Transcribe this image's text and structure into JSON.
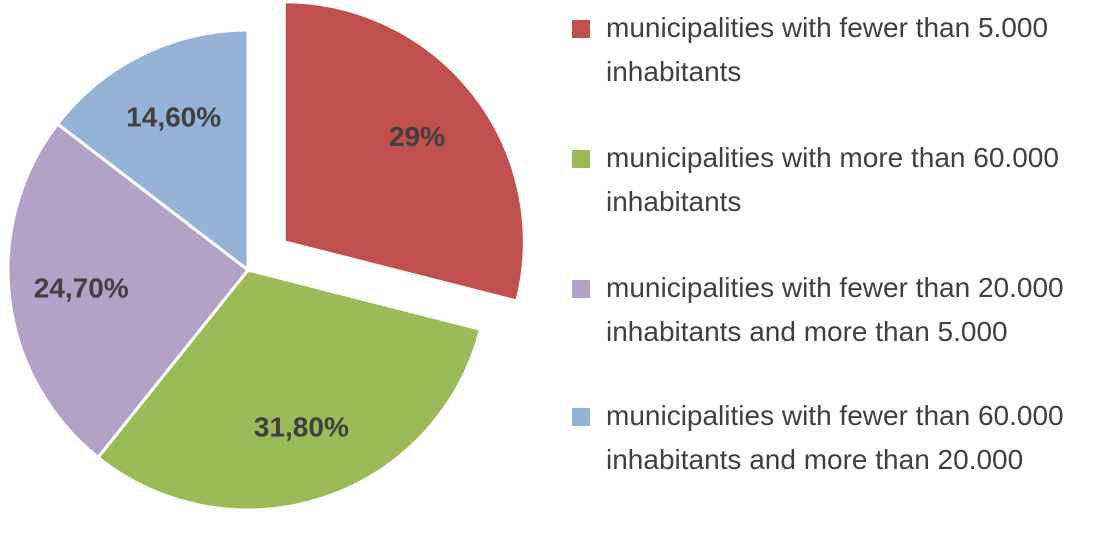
{
  "chart_data": {
    "type": "pie",
    "categories": [
      "municipalities with fewer than 5.000 inhabitants",
      "municipalities with more than 60.000 inhabitants",
      "municipalities with fewer than 20.000 inhabitants and more than 5.000",
      "municipalities with fewer than 60.000 inhabitants and more than 20.000"
    ],
    "values": [
      29,
      31.8,
      24.7,
      14.6
    ],
    "value_labels": [
      "29%",
      "31,80%",
      "24,70%",
      "14,60%"
    ],
    "colors": [
      "#c0504d",
      "#9bbb59",
      "#b3a2c7",
      "#95b3d7"
    ],
    "exploded": [
      0
    ],
    "legend": "right"
  }
}
